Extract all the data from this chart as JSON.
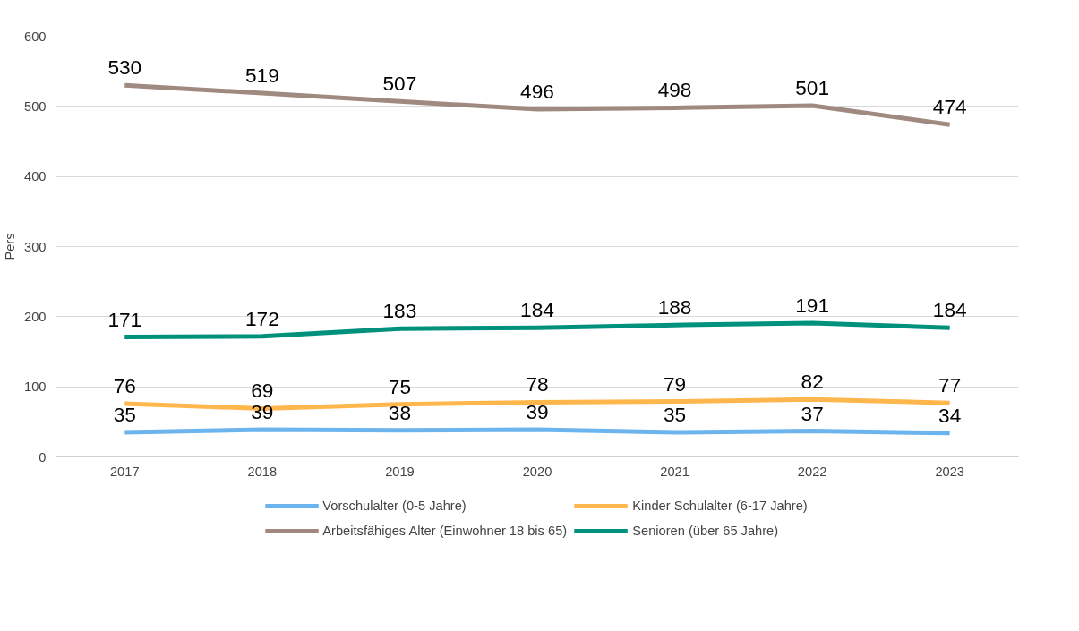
{
  "chart_data": {
    "type": "line",
    "ylabel": "Pers",
    "categories": [
      "2017",
      "2018",
      "2019",
      "2020",
      "2021",
      "2022",
      "2023"
    ],
    "series": [
      {
        "name": "Vorschulalter (0-5 Jahre)",
        "color": "#6cb4ee",
        "values": [
          35,
          39,
          38,
          39,
          35,
          37,
          34
        ]
      },
      {
        "name": "Kinder Schulalter (6-17 Jahre)",
        "color": "#ffb74d",
        "values": [
          76,
          69,
          75,
          78,
          79,
          82,
          77
        ]
      },
      {
        "name": "Arbeitsfähiges Alter (Einwohner 18 bis 65)",
        "color": "#a08a80",
        "values": [
          530,
          519,
          507,
          496,
          498,
          501,
          474
        ]
      },
      {
        "name": "Senioren (über 65 Jahre)",
        "color": "#00917c",
        "values": [
          171,
          172,
          183,
          184,
          188,
          191,
          184
        ]
      }
    ],
    "ylim": [
      0,
      600
    ],
    "yticks": [
      0,
      100,
      200,
      300,
      400,
      500,
      600
    ],
    "grid": "y",
    "legend": "bottom",
    "data_labels": true,
    "marker": "none",
    "line_style": "solid"
  }
}
